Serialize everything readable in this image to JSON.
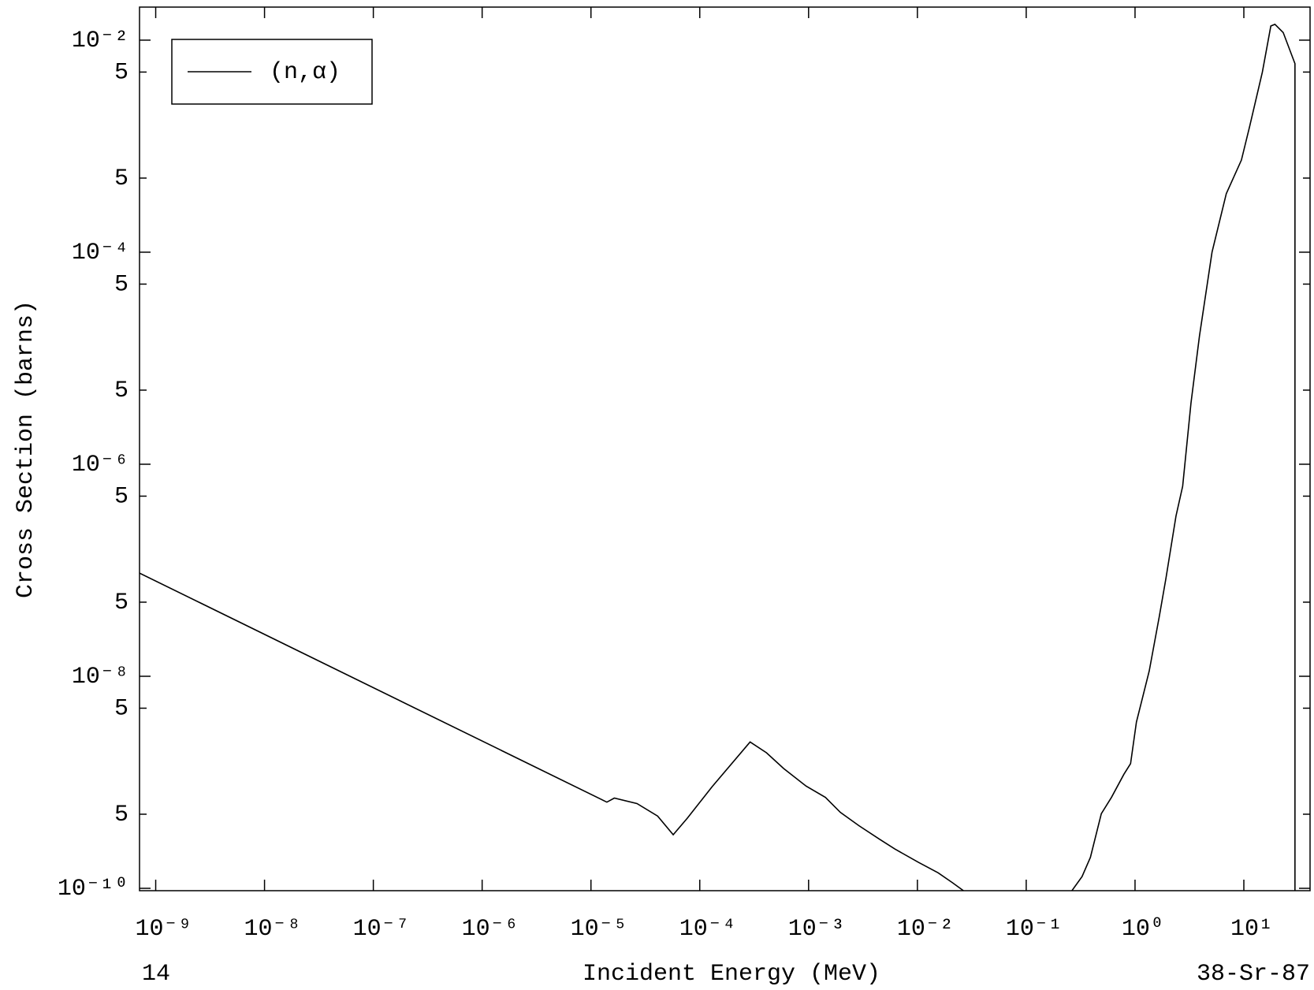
{
  "chart_data": {
    "type": "line",
    "y_label": "Cross Section (barns)",
    "x_label": "Incident Energy (MeV)",
    "footer_left": "14",
    "footer_right": "38-Sr-87",
    "xscale": "log",
    "yscale": "log",
    "xlim": [
      7.1e-10,
      40.6
    ],
    "ylim": [
      9.5e-11,
      0.0205
    ],
    "legend": "upper left",
    "xticks": [
      {
        "value": 1e-09,
        "label": "10⁻⁹"
      },
      {
        "value": 1e-08,
        "label": "10⁻⁸"
      },
      {
        "value": 1e-07,
        "label": "10⁻⁷"
      },
      {
        "value": 1e-06,
        "label": "10⁻⁶"
      },
      {
        "value": 1e-05,
        "label": "10⁻⁵"
      },
      {
        "value": 0.0001,
        "label": "10⁻⁴"
      },
      {
        "value": 0.001,
        "label": "10⁻³"
      },
      {
        "value": 0.01,
        "label": "10⁻²"
      },
      {
        "value": 0.1,
        "label": "10⁻¹"
      },
      {
        "value": 1,
        "label": "10⁰"
      },
      {
        "value": 10,
        "label": "10¹"
      }
    ],
    "yticks": [
      {
        "value": 0.01,
        "label": "10⁻²"
      },
      {
        "value": 0.005,
        "label": "5"
      },
      {
        "value": 0.0005,
        "label": "5"
      },
      {
        "value": 0.0001,
        "label": "10⁻⁴"
      },
      {
        "value": 5e-05,
        "label": "5"
      },
      {
        "value": 5e-06,
        "label": "5"
      },
      {
        "value": 1e-06,
        "label": "10⁻⁶"
      },
      {
        "value": 5e-07,
        "label": "5"
      },
      {
        "value": 5e-08,
        "label": "5"
      },
      {
        "value": 1e-08,
        "label": "10⁻⁸"
      },
      {
        "value": 5e-09,
        "label": "5"
      },
      {
        "value": 5e-10,
        "label": "5"
      },
      {
        "value": 1e-10,
        "label": "10⁻¹⁰"
      }
    ],
    "x": [
      7.1e-10,
      1.4e-05,
      1.64e-05,
      2.65e-05,
      4.1e-05,
      5.7e-05,
      7.7e-05,
      0.00013,
      0.00029,
      0.00041,
      0.00059,
      0.00095,
      0.00143,
      0.00196,
      0.0029,
      0.0045,
      0.0062,
      0.0102,
      0.0155,
      0.021,
      0.0265,
      0.1,
      0.263,
      0.326,
      0.389,
      0.49,
      0.607,
      0.79,
      0.91,
      1.03,
      1.35,
      1.67,
      1.92,
      2.38,
      2.74,
      3.27,
      3.91,
      5.1,
      6.9,
      9.5,
      11.3,
      14.8,
      17.7,
      19.3,
      23,
      29.5,
      29.5
    ],
    "series": [
      {
        "name": "(n,α)",
        "color": "#000000",
        "values": [
          9.4e-08,
          6.5e-10,
          7.1e-10,
          6.3e-10,
          4.8e-10,
          3.2e-10,
          4.6e-10,
          9.1e-10,
          2.4e-09,
          1.9e-09,
          1.35e-09,
          9.2e-10,
          7.2e-10,
          5.2e-10,
          3.9e-10,
          2.9e-10,
          2.35e-10,
          1.76e-10,
          1.4e-10,
          1.13e-10,
          9.5e-11,
          null,
          9.5e-11,
          1.29e-10,
          1.96e-10,
          5.06e-10,
          7.2e-10,
          1.19e-09,
          1.5e-09,
          3.7e-09,
          1.12e-08,
          3.65e-08,
          8.3e-08,
          3.25e-07,
          6.2e-07,
          3.8e-06,
          1.62e-05,
          0.0001,
          0.000357,
          0.00074,
          0.00153,
          0.005,
          0.0136,
          0.0141,
          0.0118,
          0.006,
          9.5e-11
        ]
      }
    ]
  }
}
